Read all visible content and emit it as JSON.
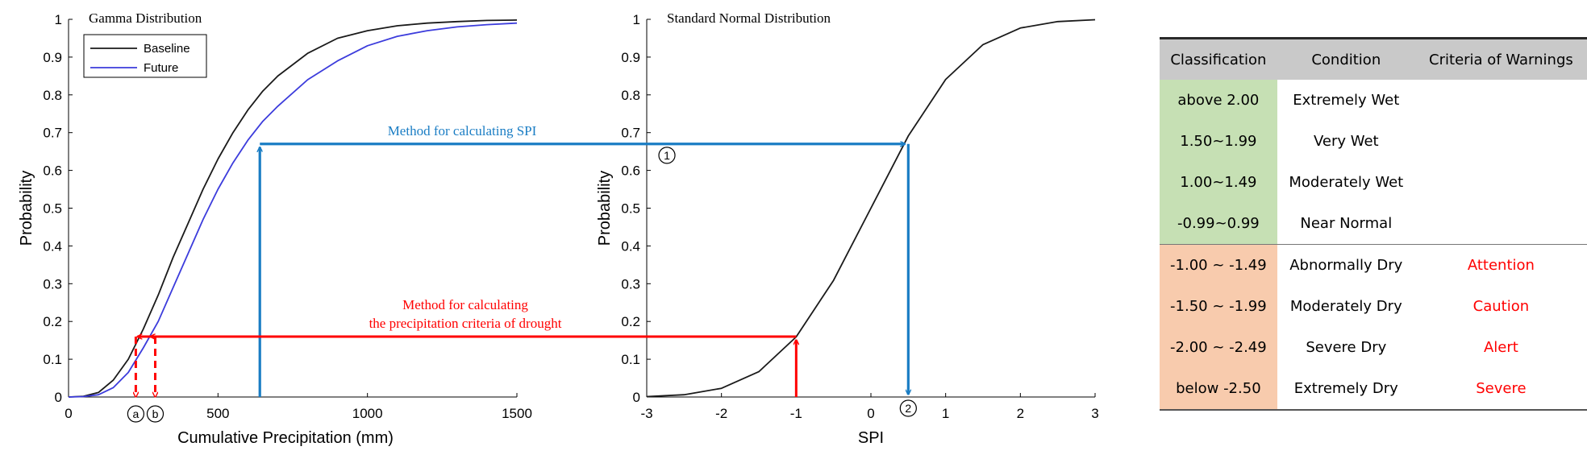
{
  "chart_data": [
    {
      "type": "line",
      "title": "Gamma Distribution",
      "xlabel": "Cumulative Precipitation (mm)",
      "ylabel": "Probability",
      "xlim": [
        0,
        1500
      ],
      "ylim": [
        0,
        1
      ],
      "xticks": [
        "0",
        "500",
        "1000",
        "1500"
      ],
      "yticks": [
        "0",
        "0.1",
        "0.2",
        "0.3",
        "0.4",
        "0.5",
        "0.6",
        "0.7",
        "0.8",
        "0.9",
        "1"
      ],
      "legend_position": "top-left",
      "series": [
        {
          "name": "Baseline",
          "color": "#1a1a1a",
          "x": [
            0,
            50,
            100,
            150,
            200,
            250,
            300,
            350,
            400,
            450,
            500,
            550,
            600,
            650,
            700,
            800,
            900,
            1000,
            1100,
            1200,
            1300,
            1400,
            1500
          ],
          "y": [
            0,
            0.002,
            0.012,
            0.045,
            0.1,
            0.18,
            0.27,
            0.37,
            0.46,
            0.55,
            0.63,
            0.7,
            0.76,
            0.81,
            0.85,
            0.91,
            0.95,
            0.97,
            0.983,
            0.99,
            0.994,
            0.997,
            0.998
          ]
        },
        {
          "name": "Future",
          "color": "#3c3cdc",
          "x": [
            0,
            50,
            100,
            150,
            200,
            250,
            300,
            350,
            400,
            450,
            500,
            550,
            600,
            650,
            700,
            800,
            900,
            1000,
            1100,
            1200,
            1300,
            1400,
            1500
          ],
          "y": [
            0,
            0.001,
            0.006,
            0.025,
            0.065,
            0.13,
            0.2,
            0.29,
            0.38,
            0.47,
            0.55,
            0.62,
            0.68,
            0.73,
            0.77,
            0.84,
            0.89,
            0.93,
            0.955,
            0.97,
            0.98,
            0.986,
            0.99
          ]
        }
      ],
      "annotations": [
        {
          "text": "Method for calculating SPI",
          "color": "#1a7dc4"
        },
        {
          "text": "Method for calculating",
          "color": "#ff0000"
        },
        {
          "text": "the precipitation criteria of drought",
          "color": "#ff0000"
        },
        {
          "text": "a",
          "x": 225
        },
        {
          "text": "b",
          "x": 290
        }
      ],
      "guides": {
        "spi_vertical_x": 640,
        "spi_level_y": 0.67,
        "drought_level_y": 0.16,
        "drought_x": [
          225,
          290
        ]
      }
    },
    {
      "type": "line",
      "title": "Standard Normal Distribution",
      "xlabel": "SPI",
      "ylabel": "Probability",
      "xlim": [
        -3,
        3
      ],
      "ylim": [
        0,
        1
      ],
      "xticks": [
        "-3",
        "-2",
        "-1",
        "0",
        "1",
        "2",
        "3"
      ],
      "yticks": [
        "0",
        "0.1",
        "0.2",
        "0.3",
        "0.4",
        "0.5",
        "0.6",
        "0.7",
        "0.8",
        "0.9",
        "1"
      ],
      "series": [
        {
          "color": "#1a1a1a",
          "x": [
            -3,
            -2.5,
            -2,
            -1.5,
            -1,
            -0.5,
            0,
            0.5,
            1,
            1.5,
            2,
            2.5,
            3
          ],
          "y": [
            0.001,
            0.006,
            0.023,
            0.067,
            0.159,
            0.309,
            0.5,
            0.691,
            0.841,
            0.933,
            0.977,
            0.994,
            0.999
          ]
        }
      ],
      "annotations": [
        {
          "text": "1",
          "x": -2.73,
          "y": 0.64
        },
        {
          "text": "2",
          "x": 0.5,
          "y": -0.03
        }
      ],
      "guides": {
        "spi_x": 0.5,
        "drought_x": -1
      }
    }
  ],
  "table": {
    "headers": [
      "Classification",
      "Condition",
      "Criteria of Warnings"
    ],
    "rows": [
      {
        "group": "wet",
        "classification": "above 2.00",
        "condition": "Extremely Wet",
        "warning": ""
      },
      {
        "group": "wet",
        "classification": "1.50~1.99",
        "condition": "Very Wet",
        "warning": ""
      },
      {
        "group": "wet",
        "classification": "1.00~1.49",
        "condition": "Moderately Wet",
        "warning": ""
      },
      {
        "group": "wet",
        "classification": "-0.99~0.99",
        "condition": "Near Normal",
        "warning": ""
      },
      {
        "group": "dry",
        "classification": "-1.00 ~ -1.49",
        "condition": "Abnormally Dry",
        "warning": "Attention"
      },
      {
        "group": "dry",
        "classification": "-1.50 ~ -1.99",
        "condition": "Moderately Dry",
        "warning": "Caution"
      },
      {
        "group": "dry",
        "classification": "-2.00 ~ -2.49",
        "condition": "Severe Dry",
        "warning": "Alert"
      },
      {
        "group": "dry",
        "classification": "below -2.50",
        "condition": "Extremely Dry",
        "warning": "Severe"
      }
    ]
  },
  "colors": {
    "spi_arrow": "#1a7dc4",
    "drought_arrow": "#ff0000",
    "wet_fill": "#c6e0b4",
    "dry_fill": "#f8cbad",
    "warning_text": "#ff0000"
  }
}
